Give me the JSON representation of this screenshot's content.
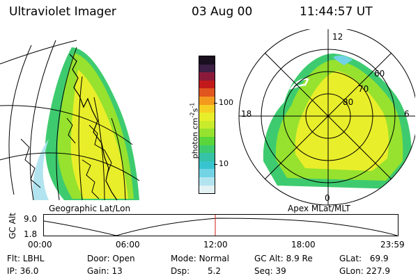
{
  "header": {
    "instrument": "Ultraviolet Imager",
    "date": "03 Aug 00",
    "time": "11:44:57 UT"
  },
  "geo_panel": {
    "caption": "Geographic Lat/Lon"
  },
  "polar_panel": {
    "caption": "Apex MLat/MLT",
    "mlt_labels": {
      "top": "12",
      "bottom": "0",
      "left": "18",
      "right": "6"
    },
    "lat_labels": [
      "60",
      "70",
      "80"
    ]
  },
  "colorbar": {
    "unit_main": "photon cm",
    "unit_exp1": "-2",
    "unit_mid": "s",
    "unit_exp2": "-1",
    "ticks": [
      "100",
      "10"
    ],
    "colors": [
      "#1a0f1f",
      "#3c1f45",
      "#8b1a3a",
      "#c21a1a",
      "#e0561f",
      "#f39a1e",
      "#f5d022",
      "#e9ee2a",
      "#c8ec2c",
      "#96e22e",
      "#5bd63a",
      "#3ecb6f",
      "#35c2a6",
      "#37c4cf",
      "#71d3e4",
      "#b2e4ef",
      "#e3f2f5"
    ]
  },
  "timeline": {
    "ylabel": "GC Alt",
    "ymax": "9.0",
    "ymin": "1.8",
    "ticks": [
      "00:00",
      "06:00",
      "12:00",
      "18:00",
      "23:59"
    ],
    "marker_color": "#d11a1a"
  },
  "status": {
    "flt_label": "Flt:",
    "flt_value": "LBHL",
    "ip_label": "IP:",
    "ip_value": "36.0",
    "door_label": "Door:",
    "door_value": "Open",
    "gain_label": "Gain:",
    "gain_value": "13",
    "mode_label": "Mode:",
    "mode_value": "Normal",
    "dsp_label": "Dsp:",
    "dsp_value": "5.2",
    "gcalt_label": "GC Alt:",
    "gcalt_value": "8.9 Re",
    "seq_label": "Seq:",
    "seq_value": "39",
    "glat_label": "GLat:",
    "glat_value": "69.9",
    "glon_label": "GLon:",
    "glon_value": "227.9"
  }
}
